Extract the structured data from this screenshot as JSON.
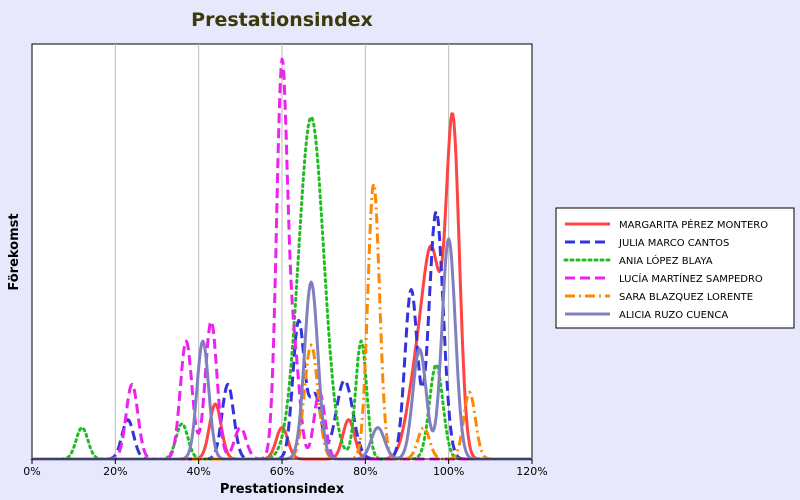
{
  "chart_data": {
    "type": "line",
    "title": "Prestationsindex",
    "xlabel": "Prestationsindex",
    "ylabel": "Förekomst",
    "xlim": [
      0,
      120
    ],
    "ylim": [
      0,
      100
    ],
    "x_ticks": [
      "0%",
      "20%",
      "40%",
      "60%",
      "80%",
      "100%",
      "120%"
    ],
    "grid": "vertical",
    "legend_position": "right",
    "series": [
      {
        "name": "MARGARITA PÉREZ MONTERO",
        "color": "#ff4444",
        "style": "solid",
        "peaks": [
          [
            44,
            14,
            1.4
          ],
          [
            60,
            8,
            1.4
          ],
          [
            76,
            10,
            1.4
          ],
          [
            92,
            18,
            2.2
          ],
          [
            96,
            50,
            2.2
          ],
          [
            101,
            84,
            1.6
          ]
        ]
      },
      {
        "name": "JULIA MARCO CANTOS",
        "color": "#3333dd",
        "style": "dashed",
        "peaks": [
          [
            23,
            10,
            1.4
          ],
          [
            47,
            19,
            1.4
          ],
          [
            64,
            35,
            1.4
          ],
          [
            68,
            16,
            1.4
          ],
          [
            75,
            20,
            2.0
          ],
          [
            91,
            43,
            1.5
          ],
          [
            97,
            63,
            1.7
          ]
        ]
      },
      {
        "name": "ANIA LÓPEZ BLAYA",
        "color": "#22bb22",
        "style": "dotted",
        "peaks": [
          [
            12,
            8,
            1.4
          ],
          [
            36,
            9,
            1.4
          ],
          [
            67,
            87,
            3.0
          ],
          [
            79,
            30,
            1.3
          ],
          [
            97,
            24,
            1.6
          ]
        ]
      },
      {
        "name": "LUCÍA MARTÍNEZ SAMPEDRO",
        "color": "#ee22ee",
        "style": "dashed",
        "peaks": [
          [
            24,
            19,
            1.4
          ],
          [
            37,
            30,
            1.4
          ],
          [
            43,
            35,
            1.4
          ],
          [
            50,
            8,
            1.4
          ],
          [
            60,
            100,
            1.3
          ],
          [
            63,
            25,
            1.3
          ],
          [
            69,
            17,
            1.3
          ]
        ]
      },
      {
        "name": "SARA BLAZQUEZ LORENTE",
        "color": "#ff8800",
        "style": "dashdot",
        "peaks": [
          [
            67,
            29,
            1.6
          ],
          [
            82,
            70,
            1.4
          ],
          [
            94,
            8,
            1.4
          ],
          [
            105,
            17,
            1.4
          ]
        ]
      },
      {
        "name": "ALICIA RUZO CUENCA",
        "color": "#8080c0",
        "style": "solid",
        "peaks": [
          [
            41,
            30,
            1.4
          ],
          [
            67,
            45,
            1.6
          ],
          [
            83,
            8,
            1.6
          ],
          [
            93,
            28,
            1.6
          ],
          [
            100,
            56,
            1.6
          ]
        ]
      }
    ]
  }
}
